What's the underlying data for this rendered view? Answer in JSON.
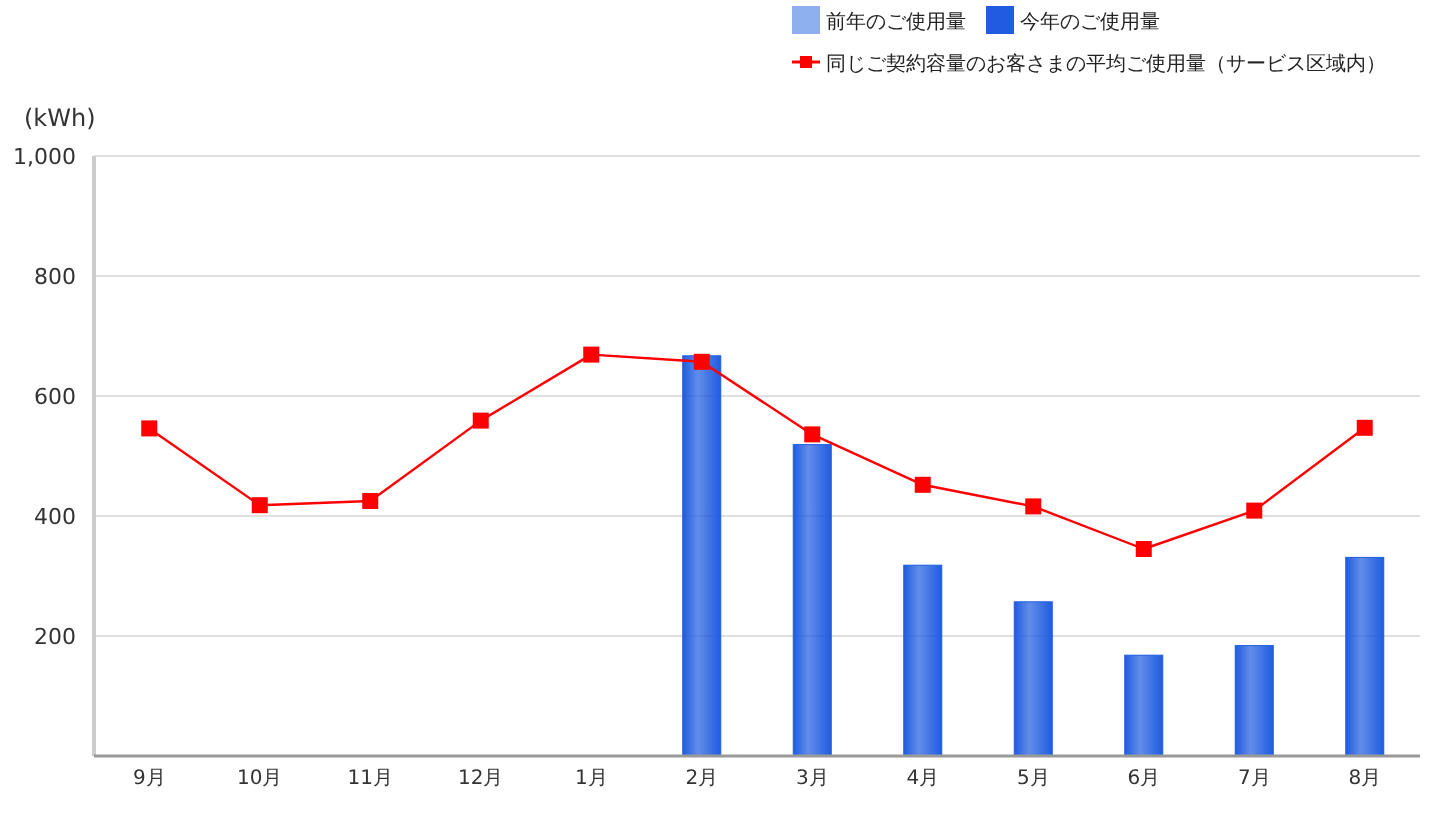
{
  "chart_data": {
    "type": "bar",
    "ylabel": "(kWh)",
    "categories": [
      "9月",
      "10月",
      "11月",
      "12月",
      "1月",
      "2月",
      "3月",
      "4月",
      "5月",
      "6月",
      "7月",
      "8月"
    ],
    "series": [
      {
        "name": "前年のご使用量",
        "color": "#8fb0ef",
        "values": [
          null,
          null,
          null,
          null,
          null,
          null,
          null,
          null,
          null,
          null,
          null,
          null
        ]
      },
      {
        "name": "今年のご使用量",
        "color": "#1f5ce0",
        "values": [
          null,
          null,
          null,
          null,
          null,
          667,
          519,
          318,
          257,
          168,
          184,
          331
        ]
      },
      {
        "name": "同じご契約容量のお客さまの平均ご使用量（サービス区域内）",
        "type": "line",
        "color": "#ff0000",
        "marker": "square",
        "values": [
          546,
          418,
          425,
          559,
          669,
          657,
          536,
          452,
          416,
          345,
          409,
          547
        ]
      }
    ],
    "ylim": [
      0,
      1000
    ],
    "yticks": [
      200,
      400,
      600,
      800,
      {
        "value": 1000,
        "label": "1,000"
      }
    ],
    "grid": "y",
    "legend": "top right"
  }
}
